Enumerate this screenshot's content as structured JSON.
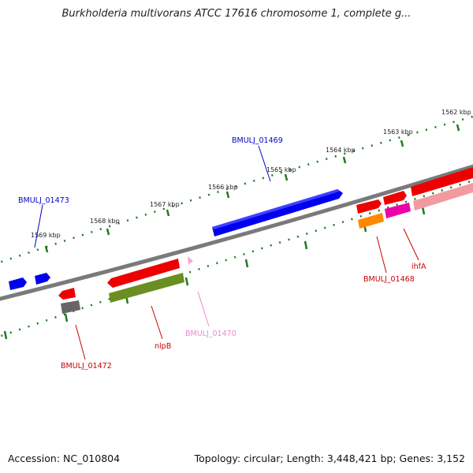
{
  "title": "Burkholderia multivorans ATCC 17616 chromosome 1, complete g...",
  "footer": {
    "accession": "Accession: NC_010804",
    "summary": "Topology: circular; Length: 3,448,421 bp; Genes: 3,152"
  },
  "scale_labels": [
    "1562 kbp",
    "1563 kbp",
    "1564 kbp",
    "1565 kbp",
    "1566 kbp",
    "1567 kbp",
    "1568 kbp",
    "1569 kbp"
  ],
  "gene_labels": [
    {
      "text": "BMULJ_01469",
      "color": "#0000cc"
    },
    {
      "text": "BMULJ_01473",
      "color": "#0000cc"
    },
    {
      "text": "BMULJ_01468",
      "color": "#cc0000"
    },
    {
      "text": "ihfA",
      "color": "#cc0000"
    },
    {
      "text": "BMULJ_01470",
      "color": "#ee88cc"
    },
    {
      "text": "nlpB",
      "color": "#cc0000"
    },
    {
      "text": "BMULJ_01472",
      "color": "#cc0000"
    }
  ],
  "colors": {
    "backbone": "#808080",
    "scale_ticks": "#1f7a1f",
    "blue": "#0000ee",
    "red": "#ee0000",
    "magenta": "#ee00aa",
    "pink": "#f29aa0",
    "orange": "#ff8800",
    "olive": "#6b8e23",
    "gray": "#666666",
    "light_pink": "#f7a8d8"
  }
}
